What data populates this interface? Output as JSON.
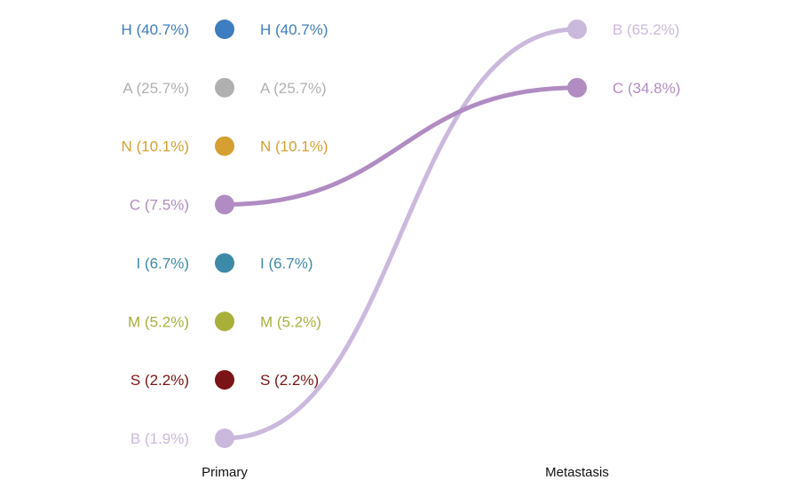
{
  "chart_data": {
    "type": "slope",
    "x": [
      "Primary",
      "Metastasis"
    ],
    "primary": [
      {
        "category": "H",
        "label": "H (40.7%)",
        "value": 40.7,
        "color": "#3e7dbf"
      },
      {
        "category": "A",
        "label": "A (25.7%)",
        "value": 25.7,
        "color": "#b0b0b0"
      },
      {
        "category": "N",
        "label": "N (10.1%)",
        "value": 10.1,
        "color": "#d4a032"
      },
      {
        "category": "C",
        "label": "C (7.5%)",
        "value": 7.5,
        "color": "#b08cc2"
      },
      {
        "category": "I",
        "label": "I (6.7%)",
        "value": 6.7,
        "color": "#3d8aa8"
      },
      {
        "category": "M",
        "label": "M (5.2%)",
        "value": 5.2,
        "color": "#a8b03a"
      },
      {
        "category": "S",
        "label": "S (2.2%)",
        "value": 2.2,
        "color": "#7b1416"
      },
      {
        "category": "B",
        "label": "B (1.9%)",
        "value": 1.9,
        "color": "#cbb9dd"
      }
    ],
    "metastasis": [
      {
        "category": "B",
        "label": "B (65.2%)",
        "value": 65.2,
        "color": "#cbb9dd"
      },
      {
        "category": "C",
        "label": "C (34.8%)",
        "value": 34.8,
        "color": "#b08cc2"
      }
    ],
    "links": [
      {
        "from": "B",
        "to": "B",
        "color": "#cbb9dd"
      },
      {
        "from": "C",
        "to": "C",
        "color": "#b08cc2"
      }
    ],
    "unlinked_right_labels": [
      {
        "category": "H",
        "label": "H (40.7%)"
      },
      {
        "category": "A",
        "label": "A (25.7%)"
      },
      {
        "category": "N",
        "label": "N (10.1%)"
      },
      {
        "category": "I",
        "label": "I (6.7%)"
      },
      {
        "category": "M",
        "label": "M (5.2%)"
      },
      {
        "category": "S",
        "label": "S (2.2%)"
      }
    ],
    "grid": false,
    "legend": "none"
  }
}
